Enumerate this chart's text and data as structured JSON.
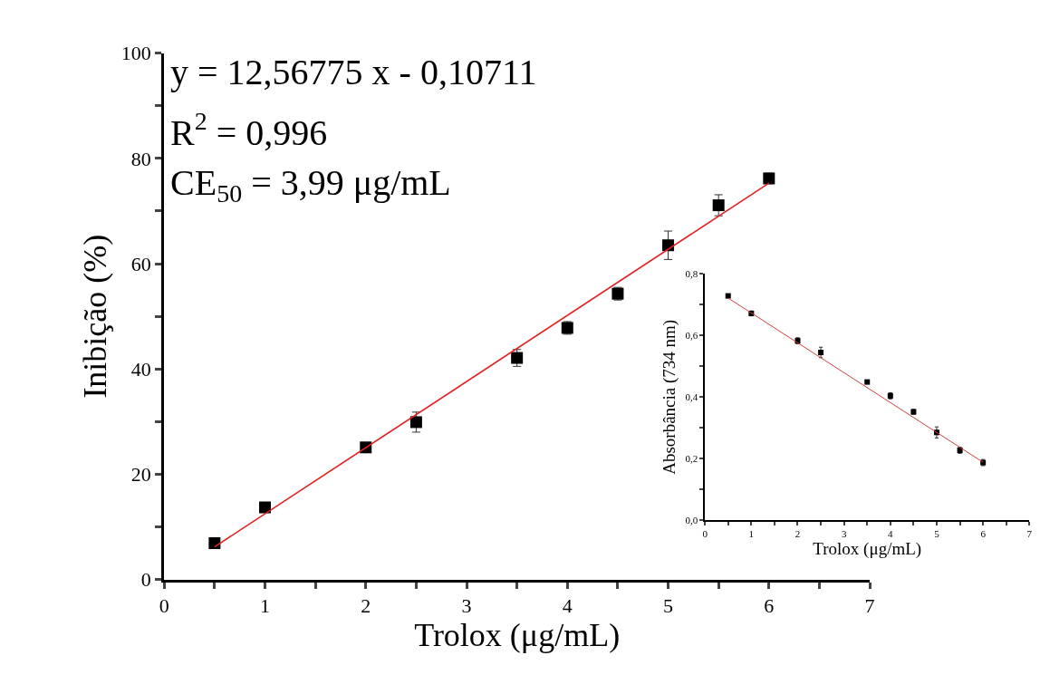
{
  "chart_data": [
    {
      "type": "scatter",
      "xlabel": "Trolox (μg/mL)",
      "ylabel": "Inibição (%)",
      "legend": false,
      "xlim": [
        0,
        7
      ],
      "ylim": [
        0,
        100
      ],
      "xticks": [
        0,
        {
          "value": 0.5,
          "label": null
        },
        1,
        {
          "value": 1.5,
          "label": null
        },
        2,
        {
          "value": 2.5,
          "label": null
        },
        3,
        {
          "value": 3.5,
          "label": null
        },
        4,
        {
          "value": 4.5,
          "label": null
        },
        5,
        {
          "value": 5.5,
          "label": null
        },
        6,
        {
          "value": 6.5,
          "label": null
        },
        7
      ],
      "yticks": [
        0,
        {
          "value": 10,
          "label": null
        },
        20,
        {
          "value": 30,
          "label": null
        },
        40,
        {
          "value": 50,
          "label": null
        },
        60,
        {
          "value": 70,
          "label": null
        },
        80,
        {
          "value": 90,
          "label": null
        },
        100
      ],
      "annotations": [
        "y = 12,56775 x - 0,10711",
        "R$^{2}$ = 0,996",
        "CE$_{50}$ = 3,99 μg/mL"
      ],
      "series": [
        {
          "marker": "square",
          "color": "#000000",
          "x": [
            0.5,
            1,
            2,
            2.5,
            3.5,
            4,
            4.5,
            5,
            5.5,
            6
          ],
          "values": [
            6.9,
            13.7,
            25.1,
            29.9,
            42.1,
            47.8,
            54.3,
            63.5,
            71.1,
            76.2
          ],
          "errors": [
            1,
            null,
            null,
            1.9,
            1.6,
            1.2,
            1.2,
            2.7,
            2,
            1
          ]
        },
        {
          "type": "line",
          "color": "#e02020",
          "x": [
            0.5,
            6
          ],
          "values": [
            6.2,
            75.3
          ]
        }
      ]
    },
    {
      "type": "scatter",
      "xlabel": "Trolox (μg/mL)",
      "ylabel": "Absorbância (734 nm)",
      "legend": false,
      "xlim": [
        0,
        7
      ],
      "ylim": [
        0,
        0.8
      ],
      "xticks": [
        0,
        {
          "value": 0.5,
          "label": null
        },
        1,
        {
          "value": 1.5,
          "label": null
        },
        2,
        {
          "value": 2.5,
          "label": null
        },
        3,
        {
          "value": 3.5,
          "label": null
        },
        4,
        {
          "value": 4.5,
          "label": null
        },
        5,
        {
          "value": 5.5,
          "label": null
        },
        6,
        {
          "value": 6.5,
          "label": null
        },
        7
      ],
      "yticks": [
        {
          "value": 0,
          "label": "0,0"
        },
        {
          "value": 0.1,
          "label": null
        },
        {
          "value": 0.2,
          "label": "0,2"
        },
        {
          "value": 0.3,
          "label": null
        },
        {
          "value": 0.4,
          "label": "0,4"
        },
        {
          "value": 0.5,
          "label": null
        },
        {
          "value": 0.6,
          "label": "0,6"
        },
        {
          "value": 0.7,
          "label": null
        },
        {
          "value": 0.8,
          "label": "0,8"
        }
      ],
      "series": [
        {
          "marker": "square",
          "color": "#000000",
          "x": [
            0.5,
            1,
            2,
            2.5,
            3.5,
            4,
            4.5,
            5,
            5.5,
            6
          ],
          "values": [
            0.729,
            0.672,
            0.583,
            0.545,
            0.449,
            0.404,
            0.352,
            0.285,
            0.227,
            0.187
          ],
          "errors": [
            null,
            0.008,
            0.01,
            0.017,
            null,
            0.01,
            0.008,
            0.018,
            0.01,
            0.01
          ]
        },
        {
          "type": "line",
          "color": "#d04040",
          "x": [
            0.5,
            6
          ],
          "values": [
            0.722,
            0.188
          ]
        }
      ]
    }
  ]
}
